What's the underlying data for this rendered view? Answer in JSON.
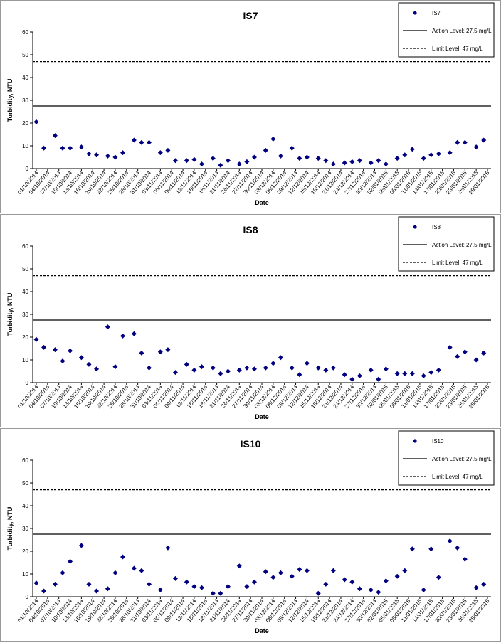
{
  "chart_data": [
    {
      "type": "scatter",
      "title": "IS7",
      "x_label": "Date",
      "y_label": "Turbidity, NTU",
      "x": [
        "01/10/2014",
        "03/10/2014",
        "06/10/2014",
        "08/10/2014",
        "10/10/2014",
        "13/10/2014",
        "15/10/2014",
        "17/10/2014",
        "20/10/2014",
        "22/10/2014",
        "24/10/2014",
        "27/10/2014",
        "29/10/2014",
        "31/10/2014",
        "03/11/2014",
        "05/11/2014",
        "07/11/2014",
        "10/11/2014",
        "12/11/2014",
        "14/11/2014",
        "17/11/2014",
        "19/11/2014",
        "21/11/2014",
        "24/11/2014",
        "26/11/2014",
        "28/11/2014",
        "01/12/2014",
        "03/12/2014",
        "05/12/2014",
        "08/12/2014",
        "10/12/2014",
        "12/12/2014",
        "15/12/2014",
        "17/12/2014",
        "19/12/2014",
        "22/12/2014",
        "24/12/2014",
        "26/12/2014",
        "29/12/2014",
        "31/12/2014",
        "02/01/2015",
        "05/01/2015",
        "07/01/2015",
        "09/01/2015",
        "12/01/2015",
        "14/01/2015",
        "16/01/2015",
        "19/01/2015",
        "21/01/2015",
        "23/01/2015",
        "26/01/2015",
        "28/01/2015"
      ],
      "series": [
        {
          "name": "IS7",
          "color": "#000080",
          "values": [
            20.5,
            9,
            14.5,
            9,
            9,
            9.5,
            6.5,
            6,
            5.5,
            5,
            7,
            12.5,
            11.5,
            11.5,
            7,
            8,
            3.5,
            3.5,
            4,
            2,
            4.5,
            1.5,
            3.5,
            2,
            3,
            5,
            8,
            13,
            5.5,
            9,
            4.5,
            5,
            4.5,
            3.5,
            2,
            2.5,
            3,
            3.5,
            2.5,
            3.5,
            2,
            4.5,
            6,
            8.5,
            4.5,
            6,
            6.5,
            7,
            11.5,
            11.5,
            9.5,
            12.5
          ]
        }
      ],
      "reference_lines": [
        {
          "name": "Action Level: 27.5 mg/L",
          "value": 27.5,
          "dashed": false
        },
        {
          "name": "Limit Level: 47 mg/L",
          "value": 47,
          "dashed": true
        }
      ],
      "xlim": [
        "01/10/2014",
        "29/01/2015"
      ],
      "xticks": [
        "01/10/2014",
        "04/10/2014",
        "07/10/2014",
        "10/10/2014",
        "13/10/2014",
        "16/10/2014",
        "19/10/2014",
        "22/10/2014",
        "25/10/2014",
        "28/10/2014",
        "31/10/2014",
        "03/11/2014",
        "06/11/2014",
        "09/11/2014",
        "12/11/2014",
        "15/11/2014",
        "18/11/2014",
        "21/11/2014",
        "24/11/2014",
        "27/11/2014",
        "30/11/2014",
        "03/12/2014",
        "06/12/2014",
        "09/12/2014",
        "12/12/2014",
        "15/12/2014",
        "18/12/2014",
        "21/12/2014",
        "24/12/2014",
        "27/12/2014",
        "30/12/2014",
        "02/01/2015",
        "05/01/2015",
        "08/01/2015",
        "11/01/2015",
        "14/01/2015",
        "17/01/2015",
        "20/01/2015",
        "23/01/2015",
        "26/01/2015",
        "29/01/2015"
      ],
      "ylim": [
        0,
        60
      ],
      "yticks": [
        0,
        10,
        20,
        30,
        40,
        50,
        60
      ],
      "grid": false,
      "legend": "upper right"
    },
    {
      "type": "scatter",
      "title": "IS8",
      "x_label": "Date",
      "y_label": "Turbidity, NTU",
      "x": [
        "01/10/2014",
        "03/10/2014",
        "06/10/2014",
        "08/10/2014",
        "10/10/2014",
        "13/10/2014",
        "15/10/2014",
        "17/10/2014",
        "20/10/2014",
        "22/10/2014",
        "24/10/2014",
        "27/10/2014",
        "29/10/2014",
        "31/10/2014",
        "03/11/2014",
        "05/11/2014",
        "07/11/2014",
        "10/11/2014",
        "12/11/2014",
        "14/11/2014",
        "17/11/2014",
        "19/11/2014",
        "21/11/2014",
        "24/11/2014",
        "26/11/2014",
        "28/11/2014",
        "01/12/2014",
        "03/12/2014",
        "05/12/2014",
        "08/12/2014",
        "10/12/2014",
        "12/12/2014",
        "15/12/2014",
        "17/12/2014",
        "19/12/2014",
        "22/12/2014",
        "24/12/2014",
        "26/12/2014",
        "29/12/2014",
        "31/12/2014",
        "02/01/2015",
        "05/01/2015",
        "07/01/2015",
        "09/01/2015",
        "12/01/2015",
        "14/01/2015",
        "16/01/2015",
        "19/01/2015",
        "21/01/2015",
        "23/01/2015",
        "26/01/2015",
        "28/01/2015"
      ],
      "series": [
        {
          "name": "IS8",
          "color": "#000080",
          "values": [
            19,
            15.5,
            14.5,
            9.5,
            14,
            11,
            8,
            6,
            24.5,
            7,
            20.5,
            21.5,
            13,
            6.5,
            13.5,
            14.5,
            4.5,
            8,
            5.5,
            7,
            6.5,
            4,
            5,
            5.5,
            6.5,
            6,
            6.5,
            8.5,
            11,
            6.5,
            3.5,
            8.5,
            6.5,
            5.5,
            6.5,
            3.5,
            1.5,
            3,
            5.5,
            1.5,
            6,
            4,
            4,
            4,
            3,
            4.5,
            5.5,
            15.5,
            11.5,
            13.5,
            10,
            13
          ]
        }
      ],
      "reference_lines": [
        {
          "name": "Action Level: 27.5 mg/L",
          "value": 27.5,
          "dashed": false
        },
        {
          "name": "Limit Level: 47 mg/L",
          "value": 47,
          "dashed": true
        }
      ],
      "xlim": [
        "01/10/2014",
        "29/01/2015"
      ],
      "xticks": [
        "01/10/2014",
        "04/10/2014",
        "07/10/2014",
        "10/10/2014",
        "13/10/2014",
        "16/10/2014",
        "19/10/2014",
        "22/10/2014",
        "25/10/2014",
        "28/10/2014",
        "31/10/2014",
        "03/11/2014",
        "06/11/2014",
        "09/11/2014",
        "12/11/2014",
        "15/11/2014",
        "18/11/2014",
        "21/11/2014",
        "24/11/2014",
        "27/11/2014",
        "30/11/2014",
        "03/12/2014",
        "06/12/2014",
        "09/12/2014",
        "12/12/2014",
        "15/12/2014",
        "18/12/2014",
        "21/12/2014",
        "24/12/2014",
        "27/12/2014",
        "30/12/2014",
        "02/01/2015",
        "05/01/2015",
        "08/01/2015",
        "11/01/2015",
        "14/01/2015",
        "17/01/2015",
        "20/01/2015",
        "23/01/2015",
        "26/01/2015",
        "29/01/2015"
      ],
      "ylim": [
        0,
        60
      ],
      "yticks": [
        0,
        10,
        20,
        30,
        40,
        50,
        60
      ],
      "grid": false,
      "legend": "upper right"
    },
    {
      "type": "scatter",
      "title": "IS10",
      "x_label": "Date",
      "y_label": "Turbidity, NTU",
      "x": [
        "01/10/2014",
        "03/10/2014",
        "06/10/2014",
        "08/10/2014",
        "10/10/2014",
        "13/10/2014",
        "15/10/2014",
        "17/10/2014",
        "20/10/2014",
        "22/10/2014",
        "24/10/2014",
        "27/10/2014",
        "29/10/2014",
        "31/10/2014",
        "03/11/2014",
        "05/11/2014",
        "07/11/2014",
        "10/11/2014",
        "12/11/2014",
        "14/11/2014",
        "17/11/2014",
        "19/11/2014",
        "21/11/2014",
        "24/11/2014",
        "26/11/2014",
        "28/11/2014",
        "01/12/2014",
        "03/12/2014",
        "05/12/2014",
        "08/12/2014",
        "10/12/2014",
        "12/12/2014",
        "15/12/2014",
        "17/12/2014",
        "19/12/2014",
        "22/12/2014",
        "24/12/2014",
        "26/12/2014",
        "29/12/2014",
        "31/12/2014",
        "02/01/2015",
        "05/01/2015",
        "07/01/2015",
        "09/01/2015",
        "12/01/2015",
        "14/01/2015",
        "16/01/2015",
        "19/01/2015",
        "21/01/2015",
        "23/01/2015",
        "26/01/2015",
        "28/01/2015"
      ],
      "series": [
        {
          "name": "IS10",
          "color": "#000080",
          "values": [
            6,
            2.5,
            5.5,
            10.5,
            15.5,
            22.5,
            5.5,
            2.5,
            3.5,
            10.5,
            17.5,
            12.5,
            11.5,
            5.5,
            3,
            21.5,
            8,
            6.5,
            4.5,
            4,
            1.5,
            1.5,
            4.5,
            13.5,
            4.5,
            6.5,
            11,
            8.5,
            10.5,
            9,
            12,
            11.5,
            1.5,
            5.5,
            11.5,
            7.5,
            6.5,
            3.5,
            3,
            2,
            7,
            9,
            11.5,
            21,
            3,
            21,
            8.5,
            24.5,
            21.5,
            16.5,
            4,
            5.5
          ]
        }
      ],
      "reference_lines": [
        {
          "name": "Action Level: 27.5 mg/L",
          "value": 27.5,
          "dashed": false
        },
        {
          "name": "Limit Level: 47 mg/L",
          "value": 47,
          "dashed": true
        }
      ],
      "xlim": [
        "01/10/2014",
        "29/01/2015"
      ],
      "xticks": [
        "01/10/2014",
        "04/10/2014",
        "07/10/2014",
        "10/10/2014",
        "13/10/2014",
        "16/10/2014",
        "19/10/2014",
        "22/10/2014",
        "25/10/2014",
        "28/10/2014",
        "31/10/2014",
        "03/11/2014",
        "06/11/2014",
        "09/11/2014",
        "12/11/2014",
        "15/11/2014",
        "18/11/2014",
        "21/11/2014",
        "24/11/2014",
        "27/11/2014",
        "30/11/2014",
        "03/12/2014",
        "06/12/2014",
        "09/12/2014",
        "12/12/2014",
        "15/12/2014",
        "18/12/2014",
        "21/12/2014",
        "24/12/2014",
        "27/12/2014",
        "30/12/2014",
        "02/01/2015",
        "05/01/2015",
        "08/01/2015",
        "11/01/2015",
        "14/01/2015",
        "17/01/2015",
        "20/01/2015",
        "23/01/2015",
        "26/01/2015",
        "29/01/2015"
      ],
      "ylim": [
        0,
        60
      ],
      "yticks": [
        0,
        10,
        20,
        30,
        40,
        50,
        60
      ],
      "grid": false,
      "legend": "upper right"
    }
  ]
}
